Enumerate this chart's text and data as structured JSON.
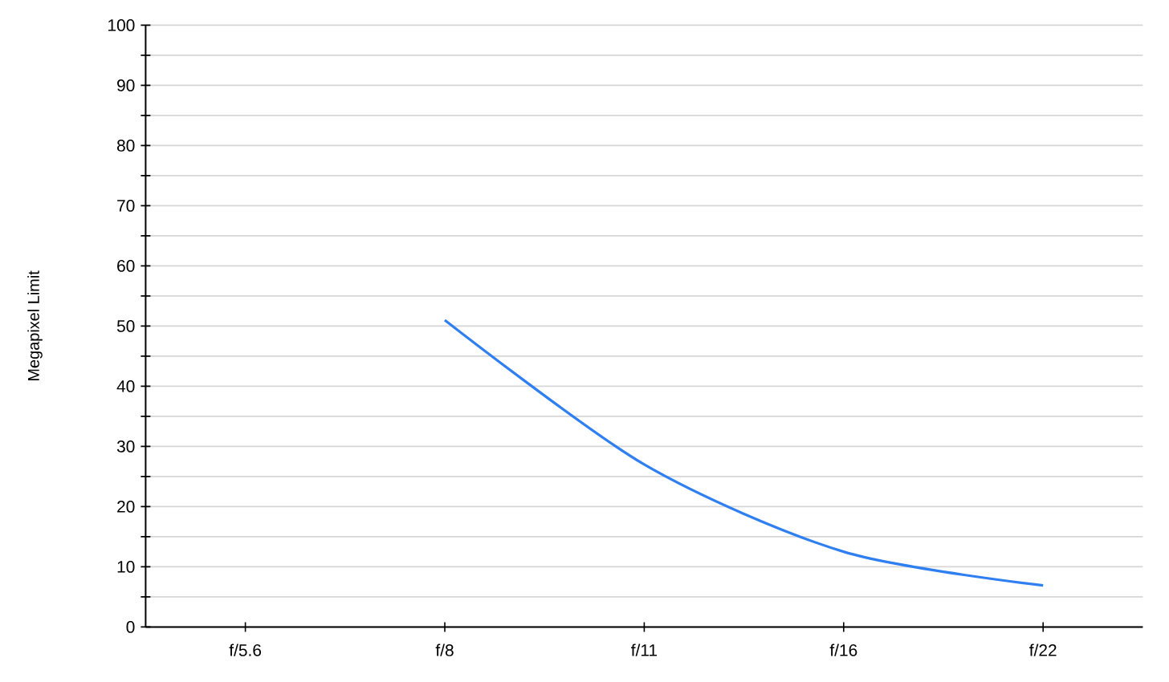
{
  "chart_data": {
    "type": "line",
    "ylabel": "Megapixel Limit",
    "categories": [
      "f/5.6",
      "f/8",
      "f/11",
      "f/16",
      "f/22"
    ],
    "values": [
      null,
      51.0,
      27.0,
      12.5,
      6.9
    ],
    "color": "#2f7ff0",
    "ylim": [
      0,
      100
    ],
    "yticks": [
      0,
      {
        "value": 5,
        "label": null
      },
      10,
      {
        "value": 15,
        "label": null
      },
      20,
      {
        "value": 25,
        "label": null
      },
      30,
      {
        "value": 35,
        "label": null
      },
      40,
      {
        "value": 45,
        "label": null
      },
      50,
      {
        "value": 55,
        "label": null
      },
      60,
      {
        "value": 65,
        "label": null
      },
      70,
      {
        "value": 75,
        "label": null
      },
      80,
      {
        "value": 85,
        "label": null
      },
      90,
      {
        "value": 95,
        "label": null
      },
      100
    ],
    "grid": "y",
    "marker": "none",
    "line_style": "solid"
  }
}
